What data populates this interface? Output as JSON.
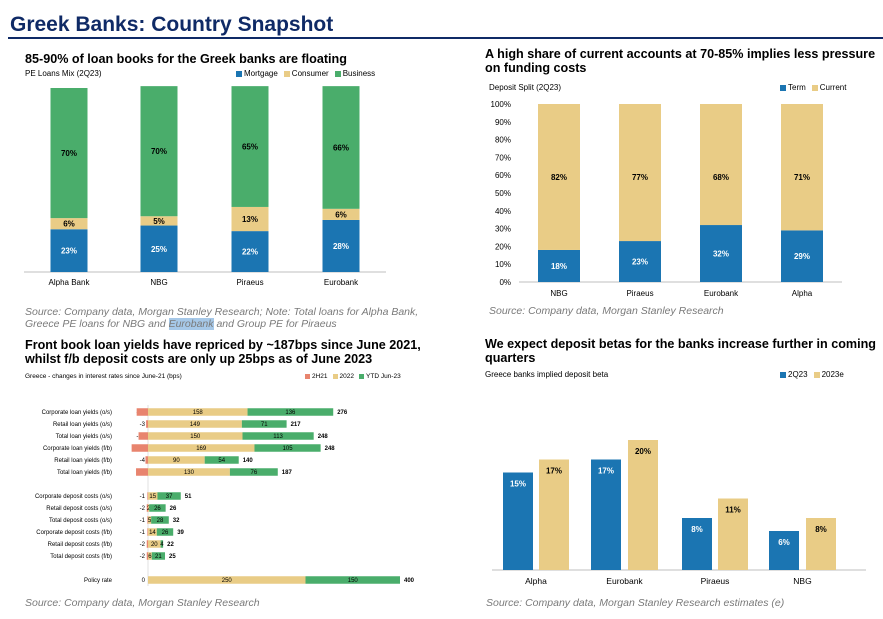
{
  "page": {
    "title": "Greek Banks: Country Snapshot"
  },
  "colors": {
    "mortgage": "#1b75b2",
    "consumer": "#e9cc86",
    "business": "#4aad6b",
    "term": "#1b75b2",
    "current": "#e9cc86",
    "h2_21": "#e8846e",
    "y2022": "#e9cc86",
    "ytd": "#4aad6b",
    "beta2q23": "#1b75b2",
    "beta2023e": "#e9cc86"
  },
  "panel1": {
    "heading": "85-90% of loan books for the Greek banks are floating",
    "subtitle": "PE Loans Mix (2Q23)",
    "source_pre": "Source: Company data, Morgan Stanley Research; Note: Total loans for Alpha Bank, Greece PE loans for NBG and ",
    "source_hl": "Eurobank",
    "source_post": " and Group PE for Piraeus"
  },
  "panel2": {
    "heading": "A high share of current accounts at 70-85% implies less pressure on funding costs",
    "subtitle": "Deposit Split (2Q23)",
    "source": "Source: Company data, Morgan Stanley Research"
  },
  "panel3": {
    "heading": "Front book loan yields have repriced by ~187bps since June 2021, whilst f/b deposit costs are only up 25bps as of June 2023",
    "subtitle": "Greece - changes in interest rates since June-21 (bps)",
    "source": "Source: Company data, Morgan Stanley Research"
  },
  "panel4": {
    "heading": "We expect deposit betas for the banks increase further in coming quarters",
    "subtitle": "Greece banks implied deposit beta",
    "source": "Source: Company data, Morgan Stanley Research estimates (e)"
  },
  "chart_data": [
    {
      "id": "loan-mix",
      "type": "bar",
      "stacked": true,
      "categories": [
        "Alpha Bank",
        "NBG",
        "Piraeus",
        "Eurobank"
      ],
      "series": [
        {
          "name": "Mortgage",
          "values": [
            23,
            25,
            22,
            28
          ],
          "labels": [
            "23%",
            "25%",
            "22%",
            "28%"
          ]
        },
        {
          "name": "Consumer",
          "values": [
            6,
            5,
            13,
            6
          ],
          "labels": [
            "6%",
            "5%",
            "13%",
            "6%"
          ]
        },
        {
          "name": "Business",
          "values": [
            70,
            70,
            65,
            66
          ],
          "labels": [
            "70%",
            "70%",
            "65%",
            "66%"
          ]
        }
      ],
      "ylim": [
        0,
        100
      ],
      "legend": "top-right"
    },
    {
      "id": "deposit-split",
      "type": "bar",
      "stacked": true,
      "categories": [
        "NBG",
        "Piraeus",
        "Eurobank",
        "Alpha"
      ],
      "series": [
        {
          "name": "Term",
          "values": [
            18,
            23,
            32,
            29
          ],
          "labels": [
            "18%",
            "23%",
            "32%",
            "29%"
          ]
        },
        {
          "name": "Current",
          "values": [
            82,
            77,
            68,
            71
          ],
          "labels": [
            "82%",
            "77%",
            "68%",
            "71%"
          ]
        }
      ],
      "ylim": [
        0,
        100
      ],
      "yticks": [
        "0%",
        "10%",
        "20%",
        "30%",
        "40%",
        "50%",
        "60%",
        "70%",
        "80%",
        "90%",
        "100%"
      ],
      "legend": "top-right"
    },
    {
      "id": "rate-changes",
      "type": "bar",
      "orientation": "horizontal",
      "stacked": true,
      "categories": [
        "Corporate loan yields (o/s)",
        "Retail loan yields (o/s)",
        "Total loan yields (o/s)",
        "Corporate loan yields (f/b)",
        "Retail loan yields (f/b)",
        "Total loan yields (f/b)",
        "Corporate deposit costs (o/s)",
        "Retail deposit costs (o/s)",
        "Total deposit costs (o/s)",
        "Corporate deposit costs (f/b)",
        "Retail deposit costs (f/b)",
        "Total deposit costs (f/b)",
        "Policy rate"
      ],
      "series": [
        {
          "name": "2H21",
          "values": [
            -18,
            -3,
            -15,
            -26,
            -4,
            -19,
            -1,
            -2,
            -1,
            -1,
            -2,
            -2,
            0
          ]
        },
        {
          "name": "2022",
          "values": [
            158,
            149,
            150,
            169,
            90,
            130,
            15,
            2,
            5,
            14,
            20,
            6,
            250
          ]
        },
        {
          "name": "YTD Jun-23",
          "values": [
            136,
            71,
            113,
            105,
            54,
            76,
            37,
            26,
            28,
            26,
            4,
            21,
            150
          ]
        }
      ],
      "totals": [
        276,
        217,
        248,
        248,
        140,
        187,
        51,
        26,
        32,
        39,
        22,
        25,
        400
      ],
      "legend": "top-right"
    },
    {
      "id": "deposit-beta",
      "type": "bar",
      "categories": [
        "Alpha",
        "Eurobank",
        "Piraeus",
        "NBG"
      ],
      "series": [
        {
          "name": "2Q23",
          "values": [
            15,
            17,
            8,
            6
          ],
          "labels": [
            "15%",
            "17%",
            "8%",
            "6%"
          ]
        },
        {
          "name": "2023e",
          "values": [
            17,
            20,
            11,
            8
          ],
          "labels": [
            "17%",
            "20%",
            "11%",
            "8%"
          ]
        }
      ],
      "ylim": [
        0,
        22
      ],
      "legend": "top-right"
    }
  ]
}
